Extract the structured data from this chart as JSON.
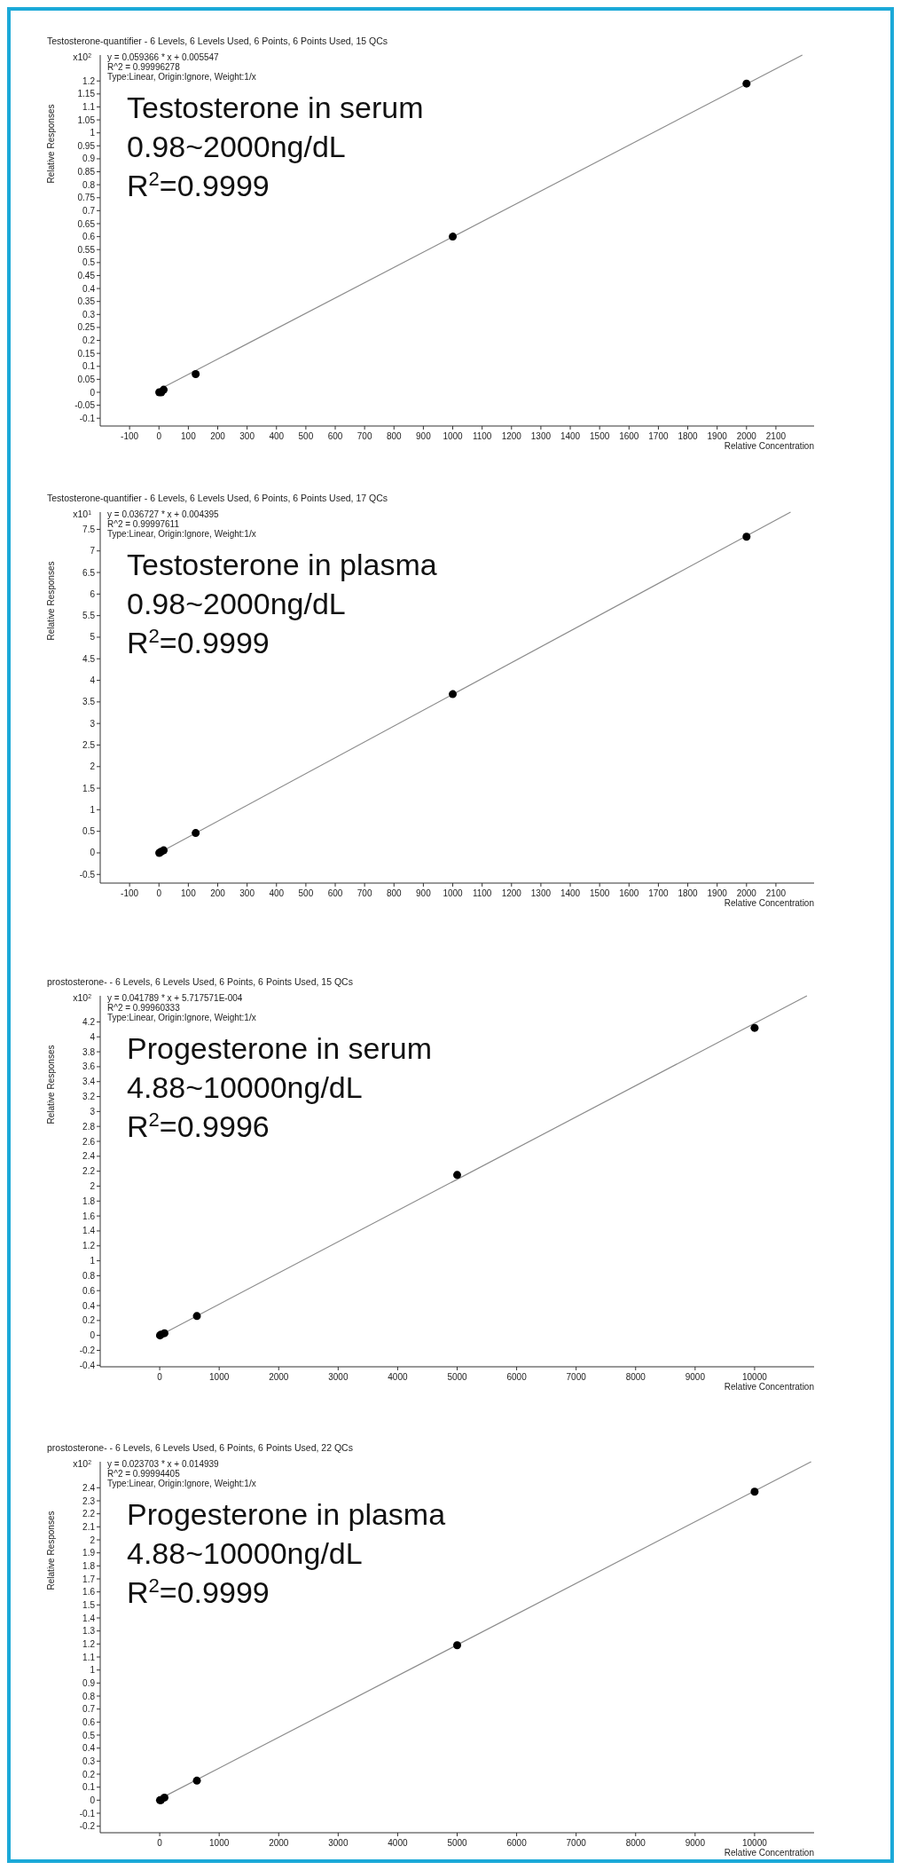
{
  "chart_data": [
    {
      "type": "scatter",
      "title": "Testosterone-quantifier - 6 Levels, 6 Levels Used, 6 Points, 6 Points Used, 15 QCs",
      "xlabel": "Relative Concentration",
      "ylabel": "Relative Responses",
      "annotations": [
        "y = 0.059366 * x  + 0.005547",
        "R^2 = 0.99996278",
        "Type:Linear, Origin:Ignore, Weight:1/x",
        "Testosterone in serum",
        "0.98~2000ng/dL",
        "R$^{2}$=0.9999",
        "x10$^{2}$"
      ],
      "xlim": [
        -200,
        2230
      ],
      "ylim": [
        -0.13,
        1.3
      ],
      "xticks": [
        -100,
        0,
        100,
        200,
        300,
        400,
        500,
        600,
        700,
        800,
        900,
        1000,
        1100,
        1200,
        1300,
        1400,
        1500,
        1600,
        1700,
        1800,
        1900,
        2000,
        2100
      ],
      "yticks": [
        -0.1,
        -0.05,
        0,
        0.05,
        0.1,
        0.15,
        0.2,
        0.25,
        0.3,
        0.35,
        0.4,
        0.45,
        0.5,
        0.55,
        0.6,
        0.65,
        0.7,
        0.75,
        0.8,
        0.85,
        0.9,
        0.95,
        1,
        1.05,
        1.1,
        1.15,
        1.2
      ],
      "series": [
        {
          "type": "line",
          "marker": "none",
          "color": "#8c8c8c",
          "x": [
            0,
            2190
          ],
          "values": [
            0.01,
            1.3
          ]
        },
        {
          "marker": "circle",
          "color": "#000000",
          "x": [
            1,
            8,
            16,
            125,
            1000,
            2000
          ],
          "values": [
            0,
            0,
            0.01,
            0.07,
            0.6,
            1.19
          ]
        }
      ]
    },
    {
      "type": "scatter",
      "title": "Testosterone-quantifier - 6 Levels, 6 Levels Used, 6 Points, 6 Points Used, 17 QCs",
      "xlabel": "Relative Concentration",
      "ylabel": "Relative Responses",
      "annotations": [
        "y = 0.036727 * x  + 0.004395",
        "R^2 = 0.99997611",
        "Type:Linear, Origin:Ignore, Weight:1/x",
        "Testosterone in plasma",
        "0.98~2000ng/dL",
        "R$^{2}$=0.9999",
        "x10$^{1}$"
      ],
      "xlim": [
        -200,
        2230
      ],
      "ylim": [
        -0.7,
        7.9
      ],
      "xticks": [
        -100,
        0,
        100,
        200,
        300,
        400,
        500,
        600,
        700,
        800,
        900,
        1000,
        1100,
        1200,
        1300,
        1400,
        1500,
        1600,
        1700,
        1800,
        1900,
        2000,
        2100
      ],
      "yticks": [
        -0.5,
        0,
        0.5,
        1,
        1.5,
        2,
        2.5,
        3,
        3.5,
        4,
        4.5,
        5,
        5.5,
        6,
        6.5,
        7,
        7.5
      ],
      "series": [
        {
          "type": "line",
          "marker": "none",
          "color": "#8c8c8c",
          "x": [
            0,
            2150
          ],
          "values": [
            0,
            7.9
          ]
        },
        {
          "marker": "circle",
          "color": "#000000",
          "x": [
            1,
            8,
            16,
            125,
            1000,
            2000
          ],
          "values": [
            0,
            0.03,
            0.06,
            0.46,
            3.68,
            7.33
          ]
        }
      ]
    },
    {
      "type": "scatter",
      "title": "prostosterone- - 6 Levels, 6 Levels Used, 6 Points, 6 Points Used, 15 QCs",
      "xlabel": "Relative Concentration",
      "ylabel": "Relative Responses",
      "annotations": [
        "y = 0.041789 * x  + 5.717571E-004",
        "R^2 = 0.99960333",
        "Type:Linear, Origin:Ignore, Weight:1/x",
        "Progesterone in serum",
        "4.88~10000ng/dL",
        "R$^{2}$=0.9996",
        "x10$^{2}$"
      ],
      "xlim": [
        -1000,
        11000
      ],
      "ylim": [
        -0.42,
        4.55
      ],
      "xticks": [
        0,
        1000,
        2000,
        3000,
        4000,
        5000,
        6000,
        7000,
        8000,
        9000,
        10000
      ],
      "yticks": [
        -0.4,
        -0.2,
        0,
        0.2,
        0.4,
        0.6,
        0.8,
        1,
        1.2,
        1.4,
        1.6,
        1.8,
        2,
        2.2,
        2.4,
        2.6,
        2.8,
        3,
        3.2,
        3.4,
        3.6,
        3.8,
        4,
        4.2
      ],
      "series": [
        {
          "type": "line",
          "marker": "none",
          "color": "#8c8c8c",
          "x": [
            0,
            10880
          ],
          "values": [
            0,
            4.55
          ]
        },
        {
          "marker": "circle",
          "color": "#000000",
          "x": [
            5,
            20,
            80,
            625,
            5000,
            10000
          ],
          "values": [
            0,
            0.01,
            0.03,
            0.26,
            2.15,
            4.12
          ]
        }
      ]
    },
    {
      "type": "scatter",
      "title": "prostosterone- - 6 Levels, 6 Levels Used, 6 Points, 6 Points Used, 22 QCs",
      "xlabel": "Relative Concentration",
      "ylabel": "Relative Responses",
      "annotations": [
        "y = 0.023703 * x  + 0.014939",
        "R^2 = 0.99994405",
        "Type:Linear, Origin:Ignore, Weight:1/x",
        "Progesterone in plasma",
        "4.88~10000ng/dL",
        "R$^{2}$=0.9999",
        "x10$^{2}$"
      ],
      "xlim": [
        -1000,
        11000
      ],
      "ylim": [
        -0.25,
        2.6
      ],
      "xticks": [
        0,
        1000,
        2000,
        3000,
        4000,
        5000,
        6000,
        7000,
        8000,
        9000,
        10000
      ],
      "yticks": [
        -0.2,
        -0.1,
        0,
        0.1,
        0.2,
        0.3,
        0.4,
        0.5,
        0.6,
        0.7,
        0.8,
        0.9,
        1,
        1.1,
        1.2,
        1.3,
        1.4,
        1.5,
        1.6,
        1.7,
        1.8,
        1.9,
        2,
        2.1,
        2.2,
        2.3,
        2.4
      ],
      "series": [
        {
          "type": "line",
          "marker": "none",
          "color": "#8c8c8c",
          "x": [
            0,
            10950
          ],
          "values": [
            0.01,
            2.6
          ]
        },
        {
          "marker": "circle",
          "color": "#000000",
          "x": [
            5,
            20,
            80,
            625,
            5000,
            10000
          ],
          "values": [
            0,
            0,
            0.02,
            0.15,
            1.19,
            2.37
          ]
        }
      ]
    }
  ]
}
